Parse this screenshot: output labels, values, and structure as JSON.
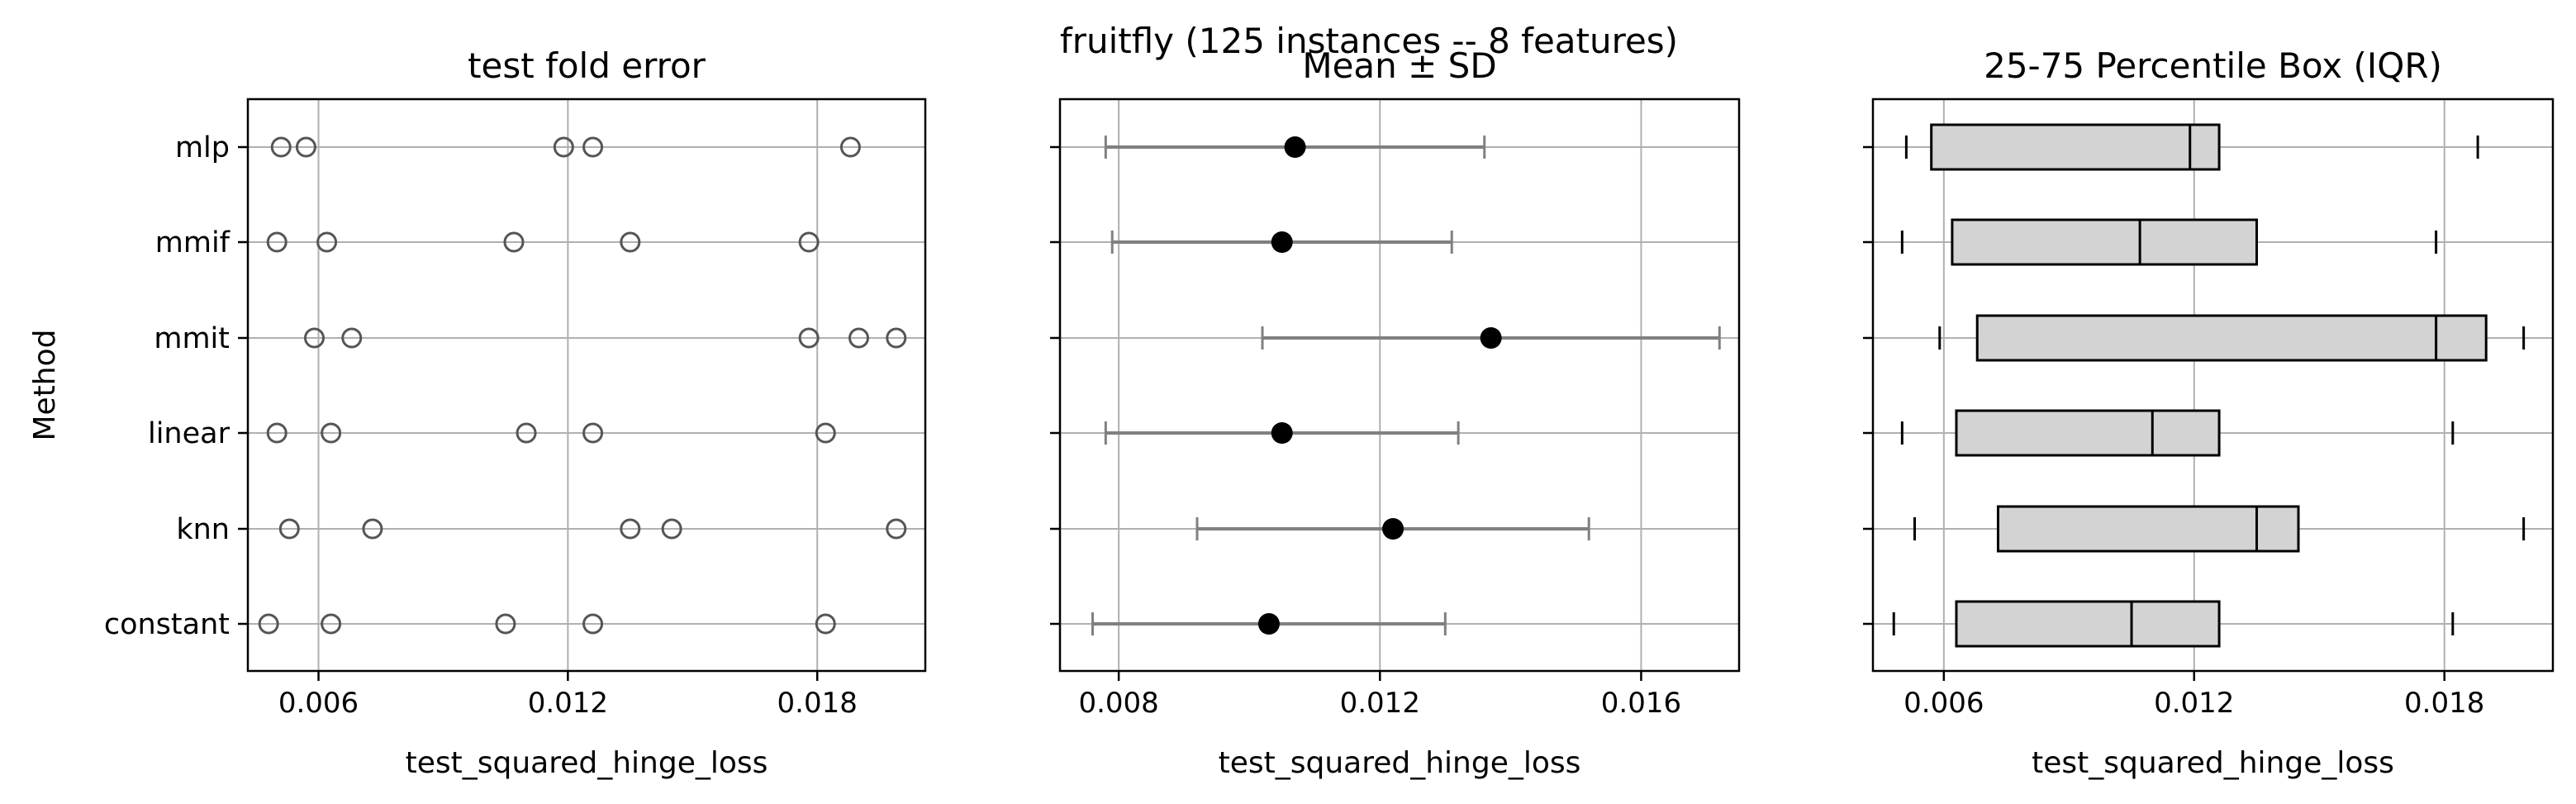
{
  "figure": {
    "suptitle": "fruitfly (125 instances -- 8 features)"
  },
  "colors": {
    "points_edge": "#555555",
    "errorbar": "#808080",
    "mean_dot": "#000000",
    "box_fill": "#d3d3d3",
    "grid": "#b0b0b0"
  },
  "chart_data": [
    {
      "type": "scatter",
      "title": "test fold error",
      "xlabel": "test_squared_hinge_loss",
      "ylabel": "Method",
      "categories": [
        "mlp",
        "mmif",
        "mmit",
        "linear",
        "knn",
        "constant"
      ],
      "xlim": [
        0.0043,
        0.0206
      ],
      "xticks": [
        0.006,
        0.012,
        0.018
      ],
      "xtick_labels": [
        "0.006",
        "0.012",
        "0.018"
      ],
      "grid": true,
      "series": [
        {
          "values": [
            0.0051,
            0.0057,
            0.0119,
            0.0126,
            0.0188
          ]
        },
        {
          "values": [
            0.005,
            0.0062,
            0.0107,
            0.0135,
            0.0178
          ]
        },
        {
          "values": [
            0.0059,
            0.0068,
            0.0178,
            0.019,
            0.0199
          ]
        },
        {
          "values": [
            0.005,
            0.0063,
            0.011,
            0.0126,
            0.0182
          ]
        },
        {
          "values": [
            0.0053,
            0.0073,
            0.0135,
            0.0145,
            0.0199
          ]
        },
        {
          "values": [
            0.0048,
            0.0063,
            0.0105,
            0.0126,
            0.0182
          ]
        }
      ]
    },
    {
      "type": "errorbar",
      "title": "Mean ± SD",
      "xlabel": "test_squared_hinge_loss",
      "categories": [
        "mlp",
        "mmif",
        "mmit",
        "linear",
        "knn",
        "constant"
      ],
      "xlim": [
        0.0071,
        0.0175
      ],
      "xticks": [
        0.008,
        0.012,
        0.016
      ],
      "xtick_labels": [
        "0.008",
        "0.012",
        "0.016"
      ],
      "grid": true,
      "mean": [
        0.0107,
        0.0105,
        0.0137,
        0.0105,
        0.0122,
        0.0103
      ],
      "sd": [
        0.0029,
        0.0026,
        0.0035,
        0.0027,
        0.003,
        0.0027
      ]
    },
    {
      "type": "box",
      "title": "25-75 Percentile Box (IQR)",
      "xlabel": "test_squared_hinge_loss",
      "categories": [
        "mlp",
        "mmif",
        "mmit",
        "linear",
        "knn",
        "constant"
      ],
      "xlim": [
        0.0043,
        0.0206
      ],
      "xticks": [
        0.006,
        0.012,
        0.018
      ],
      "xtick_labels": [
        "0.006",
        "0.012",
        "0.018"
      ],
      "grid": true,
      "min": [
        0.0051,
        0.005,
        0.0059,
        0.005,
        0.0053,
        0.0048
      ],
      "q1": [
        0.0057,
        0.0062,
        0.0068,
        0.0063,
        0.0073,
        0.0063
      ],
      "median": [
        0.0119,
        0.0107,
        0.0178,
        0.011,
        0.0135,
        0.0105
      ],
      "q3": [
        0.0126,
        0.0135,
        0.019,
        0.0126,
        0.0145,
        0.0126
      ],
      "max": [
        0.0188,
        0.0178,
        0.0199,
        0.0182,
        0.0199,
        0.0182
      ]
    }
  ]
}
